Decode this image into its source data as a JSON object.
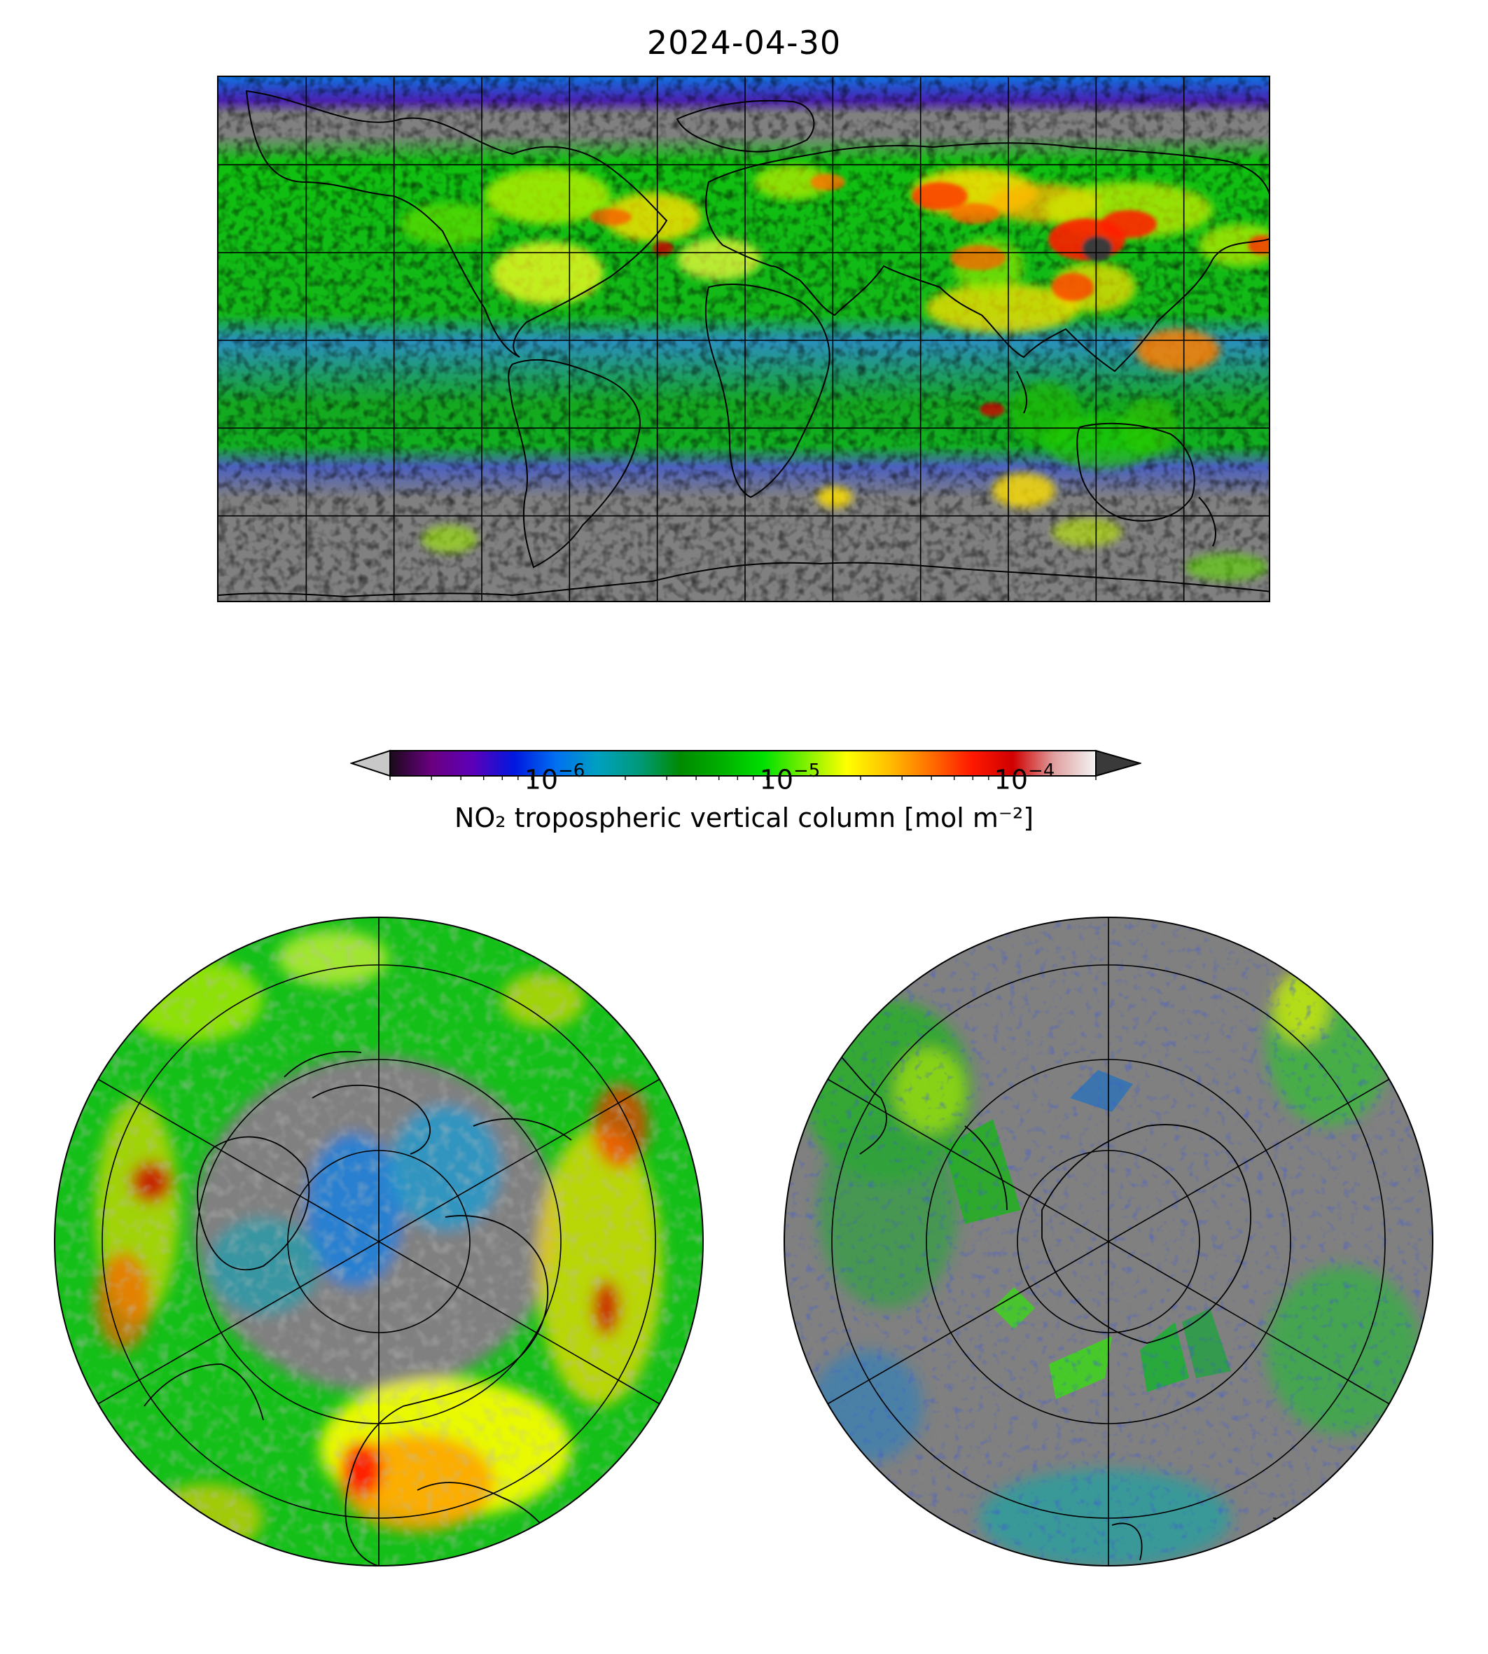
{
  "title": "2024-04-30",
  "colorbar": {
    "label": "NO₂ tropospheric vertical column [mol m⁻²]",
    "scale": "log",
    "range": [
      2e-07,
      0.0002
    ],
    "extend": "both",
    "ticks": [
      {
        "base": "10",
        "exp": "−6",
        "value": 1e-06
      },
      {
        "base": "10",
        "exp": "−5",
        "value": 1e-05
      },
      {
        "base": "10",
        "exp": "−4",
        "value": 0.0001
      }
    ],
    "colormap": [
      "#1a0a1a",
      "#6a0080",
      "#5c00b8",
      "#0018e0",
      "#0070f0",
      "#00a0c0",
      "#009a7a",
      "#008a00",
      "#00b000",
      "#00e000",
      "#7ef000",
      "#ffff00",
      "#ffc000",
      "#ff7000",
      "#ff1a00",
      "#d00000",
      "#e0a0a0",
      "#f4f4f4"
    ],
    "under_color": "#c8c8c8",
    "over_color": "#3a3a3a"
  },
  "maps": {
    "global": {
      "projection": "PlateCarree",
      "gridlines": true,
      "no_data_color": "#808080"
    },
    "north_polar": {
      "projection": "NorthPolarStereo",
      "gridlines": true
    },
    "south_polar": {
      "projection": "SouthPolarStereo",
      "gridlines": true
    }
  }
}
